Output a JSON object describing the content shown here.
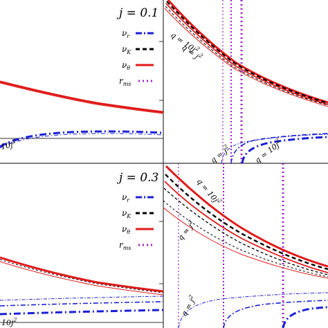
{
  "colors": {
    "nu_r": "#1a1fd6",
    "nu_K": "#000000",
    "nu_theta": "#e01a1a",
    "r_ms": "#a020c8",
    "frame": "#333333"
  },
  "legend": {
    "nu_r": "ν",
    "nu_r_sub": "r",
    "nu_K": "ν",
    "nu_K_sub": "K",
    "nu_theta": "ν",
    "nu_theta_sub": "θ",
    "r_ms": "r",
    "r_ms_sub": "ms"
  },
  "annotations": {
    "q_eq": "q = ",
    "ten": "10",
    "j": "j",
    "exp2": "2"
  },
  "chart_data": [
    {
      "type": "line",
      "panel": "top-left",
      "label": "j = 0.1",
      "legend_placement": "top-right",
      "grid": false,
      "series": [
        {
          "name": "ν_θ",
          "style": "solid",
          "x": [
            0,
            0.2,
            0.4,
            0.6,
            0.8,
            1.0
          ],
          "y": [
            0.88,
            0.77,
            0.69,
            0.63,
            0.59,
            0.565
          ]
        },
        {
          "name": "ν_r",
          "style": "dash-dot",
          "x": [
            0.05,
            0.2,
            0.4,
            0.6,
            0.8,
            1.0
          ],
          "y": [
            0.08,
            0.14,
            0.175,
            0.19,
            0.19,
            0.185
          ]
        }
      ]
    },
    {
      "type": "line",
      "panel": "top-right",
      "grid": false,
      "series": [
        {
          "name": "ν_θ",
          "style": "solid",
          "x": [
            0,
            0.2,
            0.4,
            0.6,
            0.8,
            1.0
          ],
          "y": [
            1.0,
            0.8,
            0.64,
            0.52,
            0.43,
            0.36
          ]
        },
        {
          "name": "ν_K",
          "style": "dashed",
          "x": [
            0,
            0.2,
            0.4,
            0.6,
            0.8,
            1.0
          ],
          "y": [
            0.99,
            0.79,
            0.63,
            0.51,
            0.42,
            0.355
          ]
        },
        {
          "name": "ν_r",
          "style": "dash-dot",
          "x": [
            0.48,
            0.55,
            0.7,
            0.85,
            1.0
          ],
          "y": [
            0.0,
            0.12,
            0.19,
            0.21,
            0.21
          ]
        },
        {
          "name": "r_ms",
          "style": "dotted",
          "x": [
            0.37,
            0.46,
            0.5
          ],
          "y": null
        }
      ]
    },
    {
      "type": "line",
      "panel": "bottom-left",
      "label": "j = 0.3",
      "legend_placement": "top-right",
      "grid": false,
      "series": [
        {
          "name": "ν_θ",
          "style": "solid",
          "x": [
            0,
            0.2,
            0.4,
            0.6,
            0.8,
            1.0
          ],
          "y": [
            0.52,
            0.41,
            0.35,
            0.31,
            0.29,
            0.28
          ]
        },
        {
          "name": "ν_r",
          "style": "dash-dot",
          "x": [
            0.0,
            0.3,
            0.6,
            1.0
          ],
          "y": [
            0.12,
            0.14,
            0.15,
            0.155
          ]
        }
      ]
    },
    {
      "type": "line",
      "panel": "bottom-right",
      "grid": false,
      "series": [
        {
          "name": "ν_θ",
          "style": "solid",
          "x": [
            0,
            0.2,
            0.4,
            0.6,
            0.8,
            1.0
          ],
          "y": [
            0.95,
            0.72,
            0.55,
            0.44,
            0.36,
            0.3
          ]
        },
        {
          "name": "ν_K",
          "style": "dashed",
          "x": [
            0,
            0.2,
            0.4,
            0.6,
            0.8,
            1.0
          ],
          "y": [
            0.93,
            0.7,
            0.54,
            0.43,
            0.35,
            0.29
          ]
        },
        {
          "name": "ν_r",
          "style": "dash-dot",
          "x": [
            0.76,
            0.8,
            0.9,
            1.0
          ],
          "y": [
            0.0,
            0.1,
            0.17,
            0.2
          ]
        },
        {
          "name": "r_ms",
          "style": "dotted",
          "x": [
            0.1,
            0.38,
            0.73
          ],
          "y": null
        }
      ]
    }
  ]
}
